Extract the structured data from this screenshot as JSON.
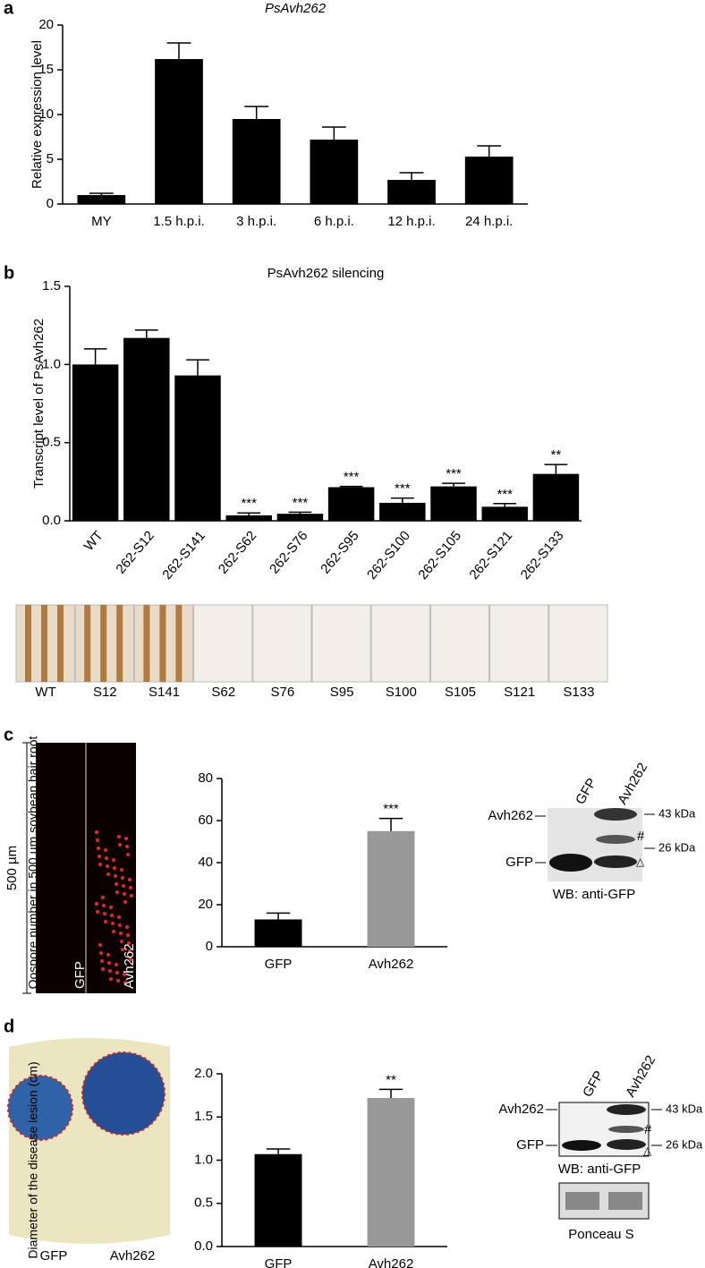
{
  "chart_data": [
    {
      "type": "bar",
      "title": "PsAvh262",
      "y_label": "Relative expression level",
      "categories": [
        "MY",
        "1.5 h.p.i.",
        "3 h.p.i.",
        "6 h.p.i.",
        "12 h.p.i.",
        "24 h.p.i."
      ],
      "values": [
        1.0,
        16.2,
        9.5,
        7.2,
        2.7,
        5.3
      ],
      "errors": [
        0.2,
        1.8,
        1.4,
        1.4,
        0.8,
        1.2
      ],
      "colors": [
        "#000000",
        "#000000",
        "#000000",
        "#000000",
        "#000000",
        "#000000"
      ],
      "ylim": [
        0,
        20
      ],
      "yticks": [
        0,
        5,
        10,
        15,
        20
      ]
    },
    {
      "type": "bar",
      "title": "PsAvh262 silencing",
      "y_label": "Transcript level of PsAvh262",
      "categories": [
        "WT",
        "262-S12",
        "262-S141",
        "262-S62",
        "262-S76",
        "262-S95",
        "262-S100",
        "262-S105",
        "262-S121",
        "262-S133"
      ],
      "values": [
        1.0,
        1.17,
        0.93,
        0.035,
        0.045,
        0.215,
        0.115,
        0.22,
        0.09,
        0.3
      ],
      "errors": [
        0.1,
        0.05,
        0.1,
        0.015,
        0.01,
        0.005,
        0.03,
        0.02,
        0.02,
        0.06
      ],
      "colors": [
        "#000000",
        "#000000",
        "#000000",
        "#000000",
        "#000000",
        "#000000",
        "#000000",
        "#000000",
        "#000000",
        "#000000"
      ],
      "significance": [
        null,
        null,
        null,
        "***",
        "***",
        "***",
        "***",
        "***",
        "***",
        "**"
      ],
      "ylim": [
        0,
        1.5
      ],
      "yticks": [
        {
          "value": 0,
          "label": "0.0"
        },
        0.5,
        {
          "value": 1,
          "label": "1.0"
        },
        1.5
      ]
    },
    {
      "type": "bar",
      "y_label": "Oospore number in 500 µm soybean hair root",
      "categories": [
        "GFP",
        "Avh262"
      ],
      "values": [
        13,
        55
      ],
      "errors": [
        3,
        6
      ],
      "colors": [
        "#000000",
        "#999999"
      ],
      "significance": [
        null,
        "***"
      ],
      "ylim": [
        0,
        80
      ],
      "yticks": [
        0,
        20,
        40,
        60,
        80
      ]
    },
    {
      "type": "bar",
      "y_label": "Diameter of the disease lesion (cm)",
      "categories": [
        "GFP",
        "Avh262"
      ],
      "values": [
        1.07,
        1.72
      ],
      "errors": [
        0.06,
        0.1
      ],
      "colors": [
        "#000000",
        "#999999"
      ],
      "significance": [
        null,
        "**"
      ],
      "ylim": [
        0,
        2
      ],
      "yticks": [
        {
          "value": 0,
          "label": "0.0"
        },
        0.5,
        {
          "value": 1,
          "label": "1.0"
        },
        1.5,
        {
          "value": 2,
          "label": "2.0"
        }
      ]
    }
  ],
  "figure": {
    "panel_labels": [
      "a",
      "b",
      "c",
      "d"
    ],
    "strip_labels": [
      "WT",
      "S12",
      "S141",
      "S62",
      "S76",
      "S95",
      "S100",
      "S105",
      "S121",
      "S133"
    ],
    "scale_label": "500 µm",
    "micro_labels": [
      "GFP",
      "Avh262"
    ],
    "blot_c": {
      "lanes": [
        "GFP",
        "Avh262"
      ],
      "bands": [
        "Avh262",
        "GFP"
      ],
      "markers": [
        "43 kDa",
        "26 kDa"
      ],
      "symbols": [
        "#",
        "△"
      ],
      "caption": "WB: anti-GFP"
    },
    "leaf_labels": [
      "GFP",
      "Avh262"
    ],
    "blot_d": {
      "lanes": [
        "GFP",
        "Avh262"
      ],
      "bands": [
        "Avh262",
        "GFP"
      ],
      "markers": [
        "43 kDa",
        "26 kDa"
      ],
      "symbols": [
        "#",
        "△"
      ],
      "caption": "WB: anti-GFP",
      "loading": "Ponceau S"
    }
  }
}
